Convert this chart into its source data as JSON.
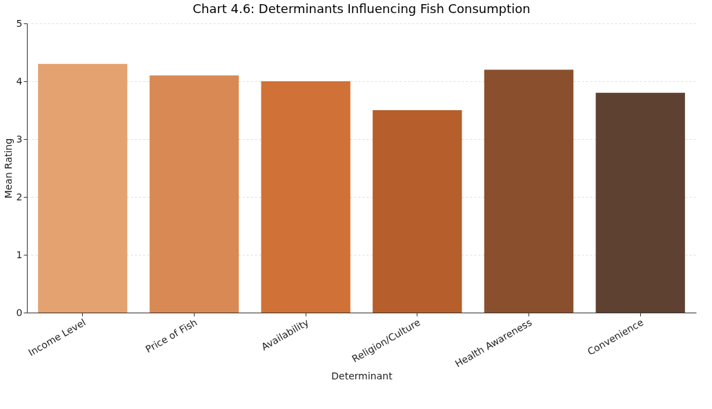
{
  "chart_data": {
    "type": "bar",
    "title": "Chart 4.6: Determinants Influencing Fish Consumption",
    "xlabel": "Determinant",
    "ylabel": "Mean Rating",
    "categories": [
      "Income Level",
      "Price of Fish",
      "Availability",
      "Religion/Culture",
      "Health Awareness",
      "Convenience"
    ],
    "values": [
      4.3,
      4.1,
      4.0,
      3.5,
      4.2,
      3.8
    ],
    "colors": [
      "#e3a270",
      "#d98954",
      "#d07237",
      "#b65e2c",
      "#8a502e",
      "#5e4131"
    ],
    "ylim": [
      0,
      5
    ],
    "yticks": [
      0,
      1,
      2,
      3,
      4,
      5
    ],
    "grid": "y"
  }
}
